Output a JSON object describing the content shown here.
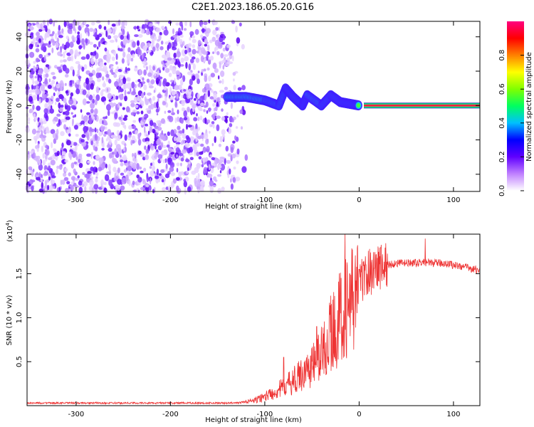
{
  "figure": {
    "title": "C2E1.2023.186.05.20.G16"
  },
  "chart_data": [
    {
      "type": "heatmap",
      "xlabel": "Height of straight line (km)",
      "ylabel": "Frequency (Hz)",
      "xlim": [
        -352,
        128
      ],
      "ylim": [
        -50,
        49
      ],
      "xticks": [
        -300,
        -200,
        -100,
        0,
        100
      ],
      "yticks": [
        -40,
        -20,
        0,
        20,
        40
      ],
      "colorbar": {
        "label": "Normalized spectral amplitude",
        "ticks": [
          0.0,
          0.2,
          0.4,
          0.6,
          0.8
        ],
        "range": [
          0,
          1
        ],
        "colors": [
          "#ffffff",
          "#c080ff",
          "#6000ff",
          "#0000ff",
          "#00c0ff",
          "#00ff60",
          "#80ff00",
          "#ffff00",
          "#ff8000",
          "#ff0000",
          "#ff0080"
        ]
      },
      "noise_region": {
        "x_range": [
          -352,
          -118
        ],
        "frequency_range": [
          -50,
          49
        ]
      },
      "tone": {
        "x_range": [
          5,
          128
        ],
        "frequency": 0
      },
      "signal_track": [
        {
          "x": -140,
          "y": 5
        },
        {
          "x": -120,
          "y": 5
        },
        {
          "x": -100,
          "y": 3
        },
        {
          "x": -85,
          "y": 0
        },
        {
          "x": -78,
          "y": 10
        },
        {
          "x": -70,
          "y": 5
        },
        {
          "x": -60,
          "y": 0
        },
        {
          "x": -55,
          "y": 6
        },
        {
          "x": -40,
          "y": 0
        },
        {
          "x": -30,
          "y": 6
        },
        {
          "x": -20,
          "y": 2
        },
        {
          "x": -10,
          "y": 1
        },
        {
          "x": 0,
          "y": 0
        }
      ]
    },
    {
      "type": "line",
      "xlabel": "Height of straight line (km)",
      "ylabel": "SNR (10 * v/v)",
      "scale_note": "(x10",
      "scale_exp": "4",
      "scale_close": ")",
      "xlim": [
        -352,
        128
      ],
      "ylim": [
        0,
        1.95
      ],
      "xticks": [
        -300,
        -200,
        -100,
        0,
        100
      ],
      "yticks": [
        0.5,
        1.0,
        1.5
      ],
      "color": "#ee3333",
      "envelope": {
        "x": [
          -352,
          -300,
          -200,
          -130,
          -110,
          -90,
          -70,
          -50,
          -40,
          -30,
          -20,
          -15,
          -10,
          0,
          10,
          20,
          30,
          40,
          50,
          60,
          70,
          80,
          90,
          100,
          110,
          128
        ],
        "y": [
          0.03,
          0.03,
          0.03,
          0.03,
          0.06,
          0.15,
          0.28,
          0.45,
          0.6,
          0.8,
          1.0,
          1.15,
          1.1,
          1.4,
          1.52,
          1.58,
          1.6,
          1.62,
          1.62,
          1.62,
          1.63,
          1.62,
          1.62,
          1.6,
          1.58,
          1.54
        ]
      },
      "spikes": [
        {
          "x": -80,
          "y": 0.55
        },
        {
          "x": -45,
          "y": 0.9
        },
        {
          "x": -30,
          "y": 1.25
        },
        {
          "x": -15,
          "y": 1.95
        },
        {
          "x": -10,
          "y": 1.5
        },
        {
          "x": 0,
          "y": 1.55
        },
        {
          "x": 70,
          "y": 1.9
        }
      ]
    }
  ]
}
